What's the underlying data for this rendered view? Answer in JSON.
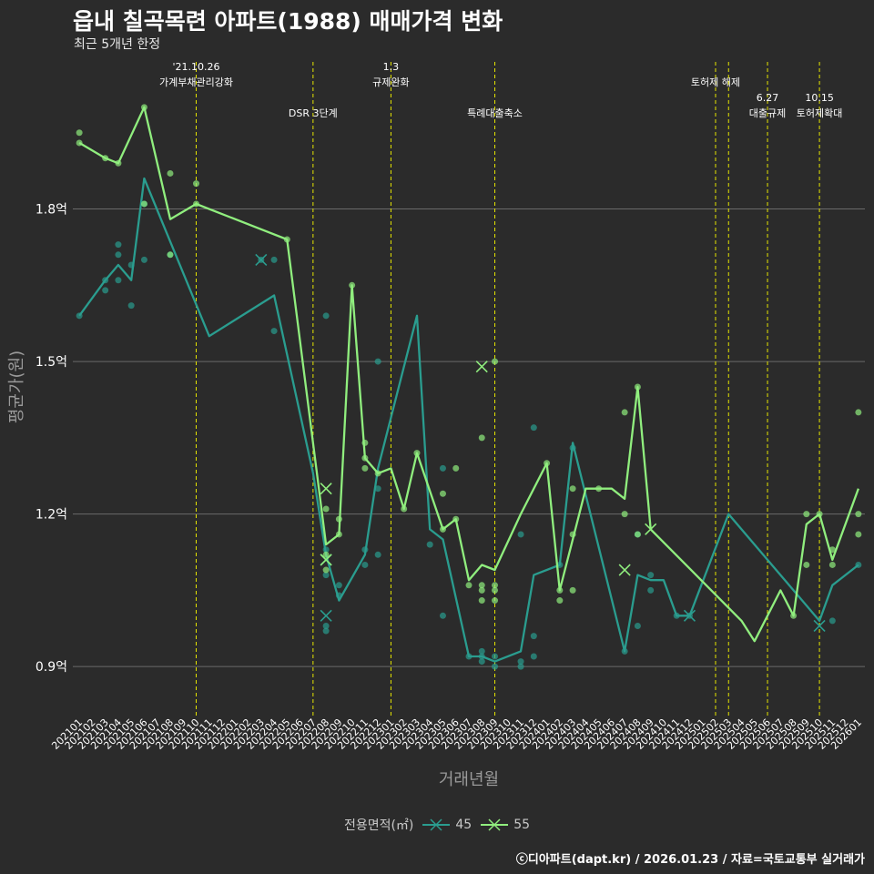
{
  "title": "읍내 칠곡목련 아파트(1988) 매매가격 변화",
  "subtitle": "최근 5개년 한정",
  "footer": "ⓒ디아파트(dapt.kr) / 2026.01.23 / 자료=국토교통부 실거래가",
  "chart_data": {
    "type": "line",
    "title": "읍내 칠곡목련 아파트(1988) 매매가격 변화",
    "xlabel": "거래년월",
    "ylabel": "평균가(원)",
    "ylim": [
      0.8,
      2.1
    ],
    "yticks": [
      0.9,
      1.2,
      1.5,
      1.8
    ],
    "ytick_labels": [
      "0.9억",
      "1.2억",
      "1.5억",
      "1.8억"
    ],
    "categories": [
      "202101",
      "202102",
      "202103",
      "202104",
      "202105",
      "202106",
      "202107",
      "202108",
      "202109",
      "202110",
      "202111",
      "202112",
      "202201",
      "202202",
      "202203",
      "202204",
      "202205",
      "202206",
      "202207",
      "202208",
      "202209",
      "202210",
      "202211",
      "202212",
      "202301",
      "202302",
      "202303",
      "202304",
      "202305",
      "202306",
      "202307",
      "202308",
      "202309",
      "202310",
      "202311",
      "202312",
      "202401",
      "202402",
      "202403",
      "202404",
      "202405",
      "202406",
      "202407",
      "202408",
      "202409",
      "202410",
      "202411",
      "202412",
      "202501",
      "202502",
      "202503",
      "202504",
      "202505",
      "202506",
      "202507",
      "202508",
      "202509",
      "202510",
      "202511",
      "202512",
      "202601"
    ],
    "legend_title": "전용면적(㎡)",
    "series": [
      {
        "name": "45",
        "color": "#2a9d8f",
        "line": [
          [
            "202101",
            1.59
          ],
          [
            "202103",
            1.66
          ],
          [
            "202104",
            1.69
          ],
          [
            "202105",
            1.66
          ],
          [
            "202106",
            1.86
          ],
          [
            "202111",
            1.55
          ],
          [
            "202204",
            1.63
          ],
          [
            "202207",
            1.28
          ],
          [
            "202208",
            1.12
          ],
          [
            "202209",
            1.03
          ],
          [
            "202211",
            1.12
          ],
          [
            "202212",
            1.29
          ],
          [
            "202303",
            1.59
          ],
          [
            "202304",
            1.17
          ],
          [
            "202305",
            1.15
          ],
          [
            "202307",
            0.92
          ],
          [
            "202308",
            0.92
          ],
          [
            "202309",
            0.91
          ],
          [
            "202311",
            0.93
          ],
          [
            "202312",
            1.08
          ],
          [
            "202402",
            1.1
          ],
          [
            "202403",
            1.34
          ],
          [
            "202407",
            0.93
          ],
          [
            "202408",
            1.08
          ],
          [
            "202409",
            1.07
          ],
          [
            "202410",
            1.07
          ],
          [
            "202411",
            1.0
          ],
          [
            "202412",
            1.0
          ],
          [
            "202503",
            1.2
          ],
          [
            "202507",
            1.08
          ],
          [
            "202510",
            0.99
          ],
          [
            "202511",
            1.06
          ],
          [
            "202601",
            1.1
          ]
        ],
        "points": [
          [
            "202101",
            1.59
          ],
          [
            "202103",
            1.66
          ],
          [
            "202103",
            1.64
          ],
          [
            "202104",
            1.66
          ],
          [
            "202104",
            1.71
          ],
          [
            "202104",
            1.73
          ],
          [
            "202105",
            1.61
          ],
          [
            "202105",
            1.69
          ],
          [
            "202106",
            1.7
          ],
          [
            "202106",
            1.81
          ],
          [
            "202108",
            1.71
          ],
          [
            "202203",
            1.7
          ],
          [
            "202204",
            1.7
          ],
          [
            "202204",
            1.56
          ],
          [
            "202208",
            1.59
          ],
          [
            "202208",
            1.13
          ],
          [
            "202208",
            1.08
          ],
          [
            "202208",
            0.98
          ],
          [
            "202208",
            0.97
          ],
          [
            "202209",
            1.06
          ],
          [
            "202209",
            1.04
          ],
          [
            "202211",
            1.13
          ],
          [
            "202211",
            1.1
          ],
          [
            "202212",
            1.5
          ],
          [
            "202212",
            1.25
          ],
          [
            "202212",
            1.12
          ],
          [
            "202304",
            1.14
          ],
          [
            "202305",
            1.29
          ],
          [
            "202305",
            1.0
          ],
          [
            "202307",
            0.92
          ],
          [
            "202308",
            0.93
          ],
          [
            "202308",
            0.92
          ],
          [
            "202308",
            0.91
          ],
          [
            "202309",
            0.9
          ],
          [
            "202309",
            0.92
          ],
          [
            "202311",
            1.16
          ],
          [
            "202311",
            0.91
          ],
          [
            "202311",
            0.9
          ],
          [
            "202312",
            1.37
          ],
          [
            "202312",
            0.96
          ],
          [
            "202312",
            0.92
          ],
          [
            "202402",
            1.1
          ],
          [
            "202403",
            1.33
          ],
          [
            "202407",
            0.93
          ],
          [
            "202408",
            1.16
          ],
          [
            "202408",
            0.98
          ],
          [
            "202409",
            1.08
          ],
          [
            "202409",
            1.05
          ],
          [
            "202411",
            1.0
          ],
          [
            "202412",
            1.0
          ],
          [
            "202601",
            1.1
          ],
          [
            "202511",
            0.99
          ]
        ],
        "cancelled": [
          [
            "202203",
            1.7
          ],
          [
            "202208",
            1.0
          ],
          [
            "202208",
            1.11
          ],
          [
            "202412",
            1.0
          ],
          [
            "202510",
            0.98
          ]
        ]
      },
      {
        "name": "55",
        "color": "#90ee7e",
        "line": [
          [
            "202101",
            1.93
          ],
          [
            "202103",
            1.9
          ],
          [
            "202104",
            1.89
          ],
          [
            "202106",
            2.0
          ],
          [
            "202108",
            1.78
          ],
          [
            "202110",
            1.81
          ],
          [
            "202205",
            1.74
          ],
          [
            "202208",
            1.14
          ],
          [
            "202209",
            1.16
          ],
          [
            "202210",
            1.65
          ],
          [
            "202211",
            1.31
          ],
          [
            "202212",
            1.28
          ],
          [
            "202301",
            1.29
          ],
          [
            "202302",
            1.21
          ],
          [
            "202303",
            1.32
          ],
          [
            "202305",
            1.17
          ],
          [
            "202306",
            1.19
          ],
          [
            "202307",
            1.07
          ],
          [
            "202308",
            1.1
          ],
          [
            "202309",
            1.09
          ],
          [
            "202311",
            1.2
          ],
          [
            "202401",
            1.3
          ],
          [
            "202402",
            1.05
          ],
          [
            "202404",
            1.25
          ],
          [
            "202405",
            1.25
          ],
          [
            "202406",
            1.25
          ],
          [
            "202407",
            1.23
          ],
          [
            "202408",
            1.45
          ],
          [
            "202409",
            1.17
          ],
          [
            "202504",
            0.99
          ],
          [
            "202505",
            0.95
          ],
          [
            "202507",
            1.05
          ],
          [
            "202508",
            1.0
          ],
          [
            "202509",
            1.18
          ],
          [
            "202510",
            1.2
          ],
          [
            "202511",
            1.11
          ],
          [
            "202601",
            1.25
          ]
        ],
        "points": [
          [
            "202101",
            1.95
          ],
          [
            "202101",
            1.93
          ],
          [
            "202103",
            1.9
          ],
          [
            "202104",
            1.89
          ],
          [
            "202106",
            2.0
          ],
          [
            "202106",
            1.81
          ],
          [
            "202108",
            1.87
          ],
          [
            "202108",
            1.71
          ],
          [
            "202110",
            1.85
          ],
          [
            "202110",
            1.81
          ],
          [
            "202205",
            1.74
          ],
          [
            "202208",
            1.21
          ],
          [
            "202208",
            1.09
          ],
          [
            "202208",
            1.12
          ],
          [
            "202209",
            1.19
          ],
          [
            "202209",
            1.16
          ],
          [
            "202210",
            1.65
          ],
          [
            "202211",
            1.34
          ],
          [
            "202211",
            1.31
          ],
          [
            "202211",
            1.29
          ],
          [
            "202212",
            1.28
          ],
          [
            "202302",
            1.21
          ],
          [
            "202303",
            1.32
          ],
          [
            "202305",
            1.24
          ],
          [
            "202305",
            1.17
          ],
          [
            "202306",
            1.29
          ],
          [
            "202306",
            1.19
          ],
          [
            "202307",
            1.06
          ],
          [
            "202308",
            1.35
          ],
          [
            "202308",
            1.06
          ],
          [
            "202308",
            1.05
          ],
          [
            "202308",
            1.03
          ],
          [
            "202309",
            1.5
          ],
          [
            "202309",
            1.06
          ],
          [
            "202309",
            1.05
          ],
          [
            "202309",
            1.03
          ],
          [
            "202401",
            1.3
          ],
          [
            "202402",
            1.05
          ],
          [
            "202402",
            1.03
          ],
          [
            "202403",
            1.25
          ],
          [
            "202403",
            1.16
          ],
          [
            "202403",
            1.05
          ],
          [
            "202405",
            1.25
          ],
          [
            "202407",
            1.4
          ],
          [
            "202407",
            1.2
          ],
          [
            "202408",
            1.45
          ],
          [
            "202408",
            1.16
          ],
          [
            "202508",
            1.0
          ],
          [
            "202509",
            1.2
          ],
          [
            "202509",
            1.1
          ],
          [
            "202510",
            1.2
          ],
          [
            "202511",
            1.13
          ],
          [
            "202511",
            1.1
          ],
          [
            "202601",
            1.4
          ],
          [
            "202601",
            1.2
          ],
          [
            "202601",
            1.16
          ]
        ],
        "cancelled": [
          [
            "202208",
            1.25
          ],
          [
            "202208",
            1.11
          ],
          [
            "202308",
            1.49
          ],
          [
            "202407",
            1.09
          ],
          [
            "202409",
            1.17
          ]
        ]
      }
    ],
    "events": [
      {
        "month": "202110",
        "labels": [
          "'21.10.26",
          "가계부채관리강화"
        ],
        "row": 0
      },
      {
        "month": "202207",
        "labels": [
          "DSR 3단계"
        ],
        "row": 1
      },
      {
        "month": "202301",
        "labels": [
          "1.3",
          "규제완화"
        ],
        "row": 0
      },
      {
        "month": "202309",
        "labels": [
          "특례대출축소"
        ],
        "row": 1
      },
      {
        "month": "202502",
        "labels": [
          "토허제 해제"
        ],
        "row": 0
      },
      {
        "month": "202503",
        "labels": [],
        "row": 0
      },
      {
        "month": "202506",
        "labels": [
          "6.27",
          "대출규제"
        ],
        "row": 1
      },
      {
        "month": "202510",
        "labels": [
          "10.15",
          "토허제확대"
        ],
        "row": 1
      }
    ]
  }
}
